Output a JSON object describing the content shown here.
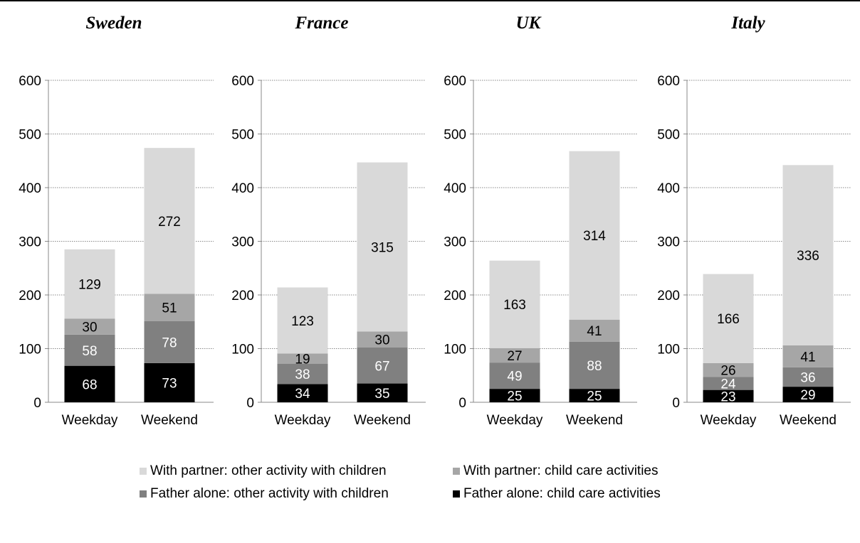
{
  "chart_data": {
    "type": "bar",
    "stacked": true,
    "categories": [
      "Weekday",
      "Weekend"
    ],
    "ylim": [
      0,
      600
    ],
    "yticks": [
      0,
      100,
      200,
      300,
      400,
      500,
      600
    ],
    "grid": true,
    "legend_position": "bottom",
    "series_meta": [
      {
        "name": "Father alone: child care activities",
        "color": "#000000",
        "label_color": "#ffffff"
      },
      {
        "name": "Father alone: other activity with children",
        "color": "#808080",
        "label_color": "#ffffff"
      },
      {
        "name": "With partner: child care activities",
        "color": "#a6a6a6",
        "label_color": "#000000"
      },
      {
        "name": "With partner: other activity with children",
        "color": "#d9d9d9",
        "label_color": "#000000"
      }
    ],
    "panels": [
      {
        "title": "Sweden",
        "series": [
          [
            68,
            73
          ],
          [
            58,
            78
          ],
          [
            30,
            51
          ],
          [
            129,
            272
          ]
        ]
      },
      {
        "title": "France",
        "series": [
          [
            34,
            35
          ],
          [
            38,
            67
          ],
          [
            19,
            30
          ],
          [
            123,
            315
          ]
        ]
      },
      {
        "title": "UK",
        "series": [
          [
            25,
            25
          ],
          [
            49,
            88
          ],
          [
            27,
            41
          ],
          [
            163,
            314
          ]
        ]
      },
      {
        "title": "Italy",
        "series": [
          [
            23,
            29
          ],
          [
            24,
            36
          ],
          [
            26,
            41
          ],
          [
            166,
            336
          ]
        ]
      }
    ]
  },
  "legend": {
    "items": [
      {
        "label": "With partner: other activity with children",
        "color": "#d9d9d9"
      },
      {
        "label": "With partner: child care activities",
        "color": "#a6a6a6"
      },
      {
        "label": "Father alone: other activity with children",
        "color": "#808080"
      },
      {
        "label": "Father alone: child care activities",
        "color": "#000000"
      }
    ]
  }
}
